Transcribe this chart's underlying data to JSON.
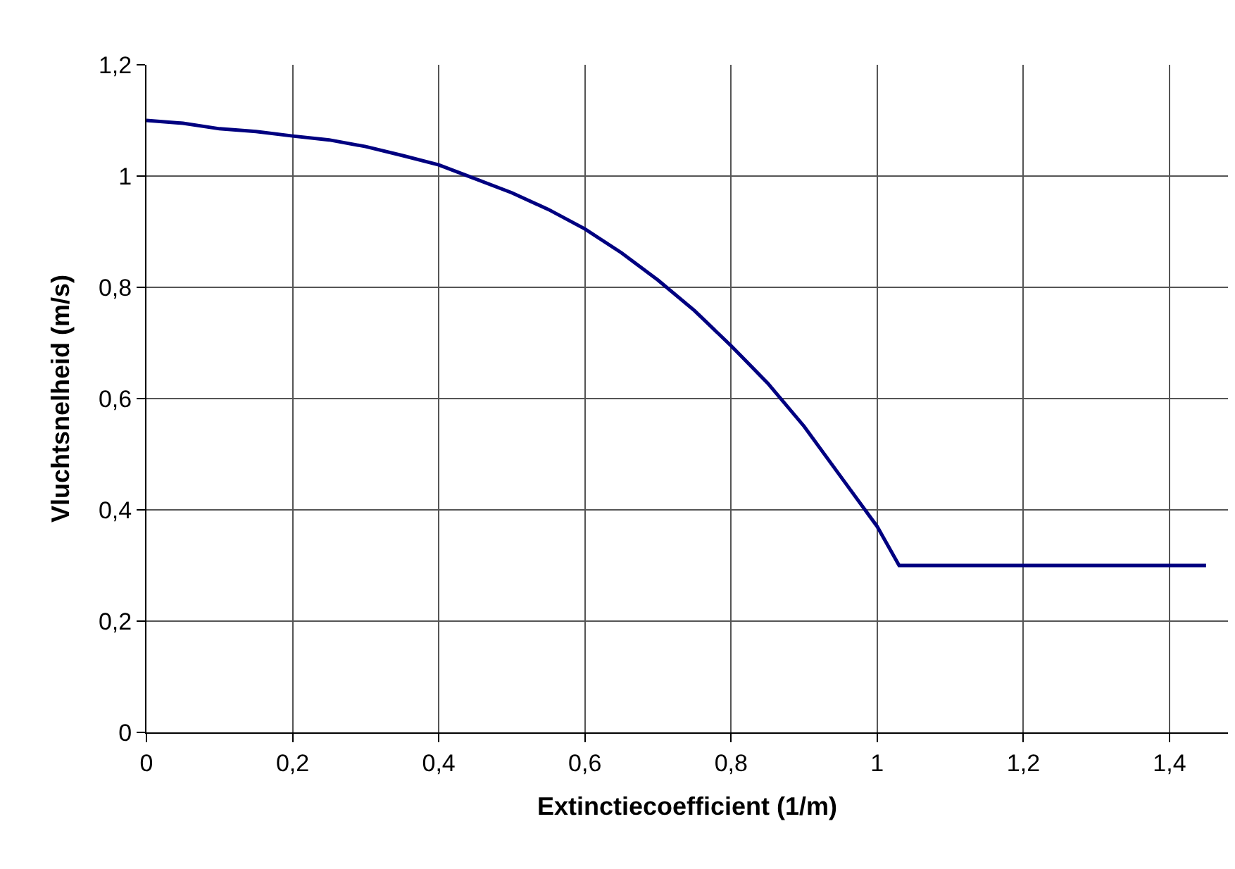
{
  "chart_data": {
    "type": "line",
    "xlabel": "Extinctiecoefficient (1/m)",
    "ylabel": "Vluchtsnelheid (m/s)",
    "x": [
      0,
      0.05,
      0.1,
      0.15,
      0.2,
      0.25,
      0.3,
      0.35,
      0.4,
      0.45,
      0.5,
      0.55,
      0.6,
      0.65,
      0.7,
      0.75,
      0.8,
      0.85,
      0.9,
      0.95,
      1.0,
      1.03,
      1.45
    ],
    "series": [
      {
        "color": "#000080",
        "values": [
          1.1,
          1.095,
          1.085,
          1.08,
          1.072,
          1.065,
          1.053,
          1.037,
          1.02,
          0.995,
          0.97,
          0.94,
          0.905,
          0.862,
          0.813,
          0.758,
          0.695,
          0.628,
          0.55,
          0.46,
          0.37,
          0.3,
          0.3
        ]
      }
    ],
    "xlim": [
      0,
      1.48
    ],
    "ylim": [
      0,
      1.2
    ],
    "xticks": [
      0,
      {
        "value": 0.2,
        "label": "0,2"
      },
      {
        "value": 0.4,
        "label": "0,4"
      },
      {
        "value": 0.6,
        "label": "0,6"
      },
      {
        "value": 0.8,
        "label": "0,8"
      },
      1,
      {
        "value": 1.2,
        "label": "1,2"
      },
      {
        "value": 1.4,
        "label": "1,4"
      }
    ],
    "yticks": [
      0,
      {
        "value": 0.2,
        "label": "0,2"
      },
      {
        "value": 0.4,
        "label": "0,4"
      },
      {
        "value": 0.6,
        "label": "0,6"
      },
      {
        "value": 0.8,
        "label": "0,8"
      },
      1,
      {
        "value": 1.2,
        "label": "1,2"
      }
    ],
    "grid": true,
    "marker": "none",
    "line_style": "solid"
  }
}
